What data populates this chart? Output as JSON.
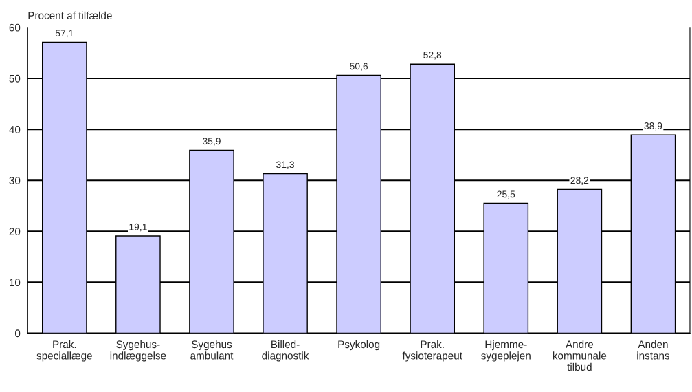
{
  "chart_data": {
    "type": "bar",
    "ylabel": "Procent af tilfælde",
    "categories": [
      "Prak.\nspeciallæge",
      "Sygehus-\nindlæggelse",
      "Sygehus\nambulant",
      "Billed-\ndiagnostik",
      "Psykolog",
      "Prak.\nfysioterapeut",
      "Hjemme-\nsygeplejen",
      "Andre\nkommunale\ntilbud",
      "Anden\ninstans"
    ],
    "values": [
      57.1,
      19.1,
      35.9,
      31.3,
      50.6,
      52.8,
      25.5,
      28.2,
      38.9
    ],
    "value_labels": [
      "57,1",
      "19,1",
      "35,9",
      "31,3",
      "50,6",
      "52,8",
      "25,5",
      "28,2",
      "38,9"
    ],
    "color": "#ccccff",
    "ylim": [
      0,
      60
    ],
    "yticks": [
      0,
      10,
      20,
      30,
      40,
      50,
      60
    ],
    "grid": "y",
    "legend": false
  }
}
